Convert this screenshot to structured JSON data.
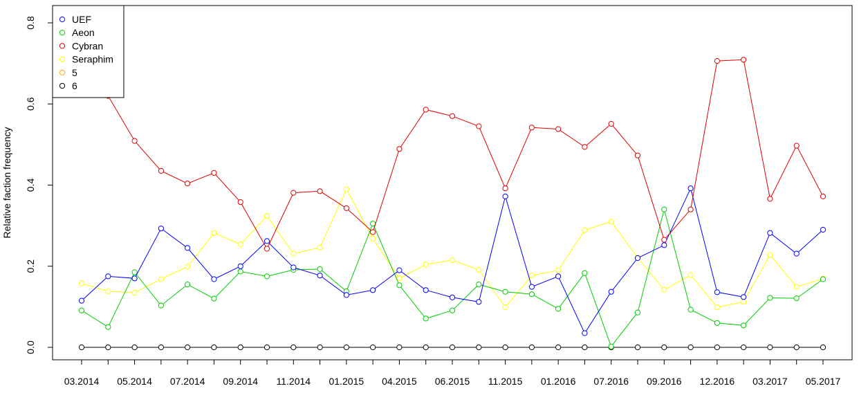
{
  "chart_data": {
    "type": "line",
    "title": "",
    "xlabel": "",
    "ylabel": "Relative faction frequency",
    "ylim": [
      0,
      0.85
    ],
    "yticks": [
      "0.0",
      "0.2",
      "0.4",
      "0.6",
      "0.8"
    ],
    "x_tick_labels": [
      "03.2014",
      "05.2014",
      "07.2014",
      "09.2014",
      "11.2014",
      "01.2015",
      "04.2015",
      "06.2015",
      "11.2015",
      "01.2016",
      "07.2016",
      "09.2016",
      "12.2016",
      "03.2017",
      "05.2017"
    ],
    "x_tick_indices": [
      0,
      2,
      4,
      6,
      8,
      10,
      12,
      14,
      16,
      18,
      20,
      22,
      24,
      26,
      28
    ],
    "num_points": 29,
    "grid": false,
    "legend_position": "top-left",
    "series": [
      {
        "name": "UEF",
        "color": "#0000ff",
        "values": [
          0.115,
          0.175,
          0.17,
          0.293,
          0.245,
          0.168,
          0.2,
          0.262,
          0.197,
          0.177,
          0.129,
          0.141,
          0.19,
          0.141,
          0.123,
          0.112,
          0.372,
          0.149,
          0.175,
          0.035,
          0.137,
          0.22,
          0.252,
          0.392,
          0.136,
          0.124,
          0.282,
          0.231,
          0.29
        ]
      },
      {
        "name": "Aeon",
        "color": "#00cc00",
        "values": [
          0.091,
          0.05,
          0.185,
          0.103,
          0.155,
          0.12,
          0.187,
          0.175,
          0.191,
          0.193,
          0.138,
          0.305,
          0.153,
          0.071,
          0.091,
          0.155,
          0.137,
          0.131,
          0.095,
          0.183,
          0.002,
          0.086,
          0.34,
          0.093,
          0.06,
          0.054,
          0.122,
          0.121,
          0.168
        ]
      },
      {
        "name": "Cybran",
        "color": "#dd0000",
        "values": [
          0.64,
          0.62,
          0.509,
          0.435,
          0.404,
          0.43,
          0.358,
          0.243,
          0.381,
          0.385,
          0.343,
          0.284,
          0.489,
          0.586,
          0.57,
          0.545,
          0.392,
          0.542,
          0.538,
          0.494,
          0.551,
          0.473,
          0.265,
          0.34,
          0.706,
          0.709,
          0.366,
          0.497,
          0.372
        ]
      },
      {
        "name": "Seraphim",
        "color": "#ffff00",
        "values": [
          0.158,
          0.138,
          0.135,
          0.168,
          0.199,
          0.282,
          0.254,
          0.324,
          0.231,
          0.246,
          0.39,
          0.268,
          0.17,
          0.204,
          0.215,
          0.191,
          0.099,
          0.177,
          0.19,
          0.289,
          0.31,
          0.221,
          0.142,
          0.178,
          0.099,
          0.112,
          0.228,
          0.149,
          0.169
        ]
      },
      {
        "name": "5",
        "color": "#ffaa00",
        "values": []
      },
      {
        "name": "6",
        "color": "#000000",
        "values": [
          0,
          0,
          0,
          0,
          0,
          0,
          0,
          0,
          0,
          0,
          0,
          0,
          0,
          0,
          0,
          0,
          0,
          0,
          0,
          0,
          0,
          0,
          0,
          0,
          0,
          0,
          0,
          0,
          0
        ]
      }
    ]
  }
}
